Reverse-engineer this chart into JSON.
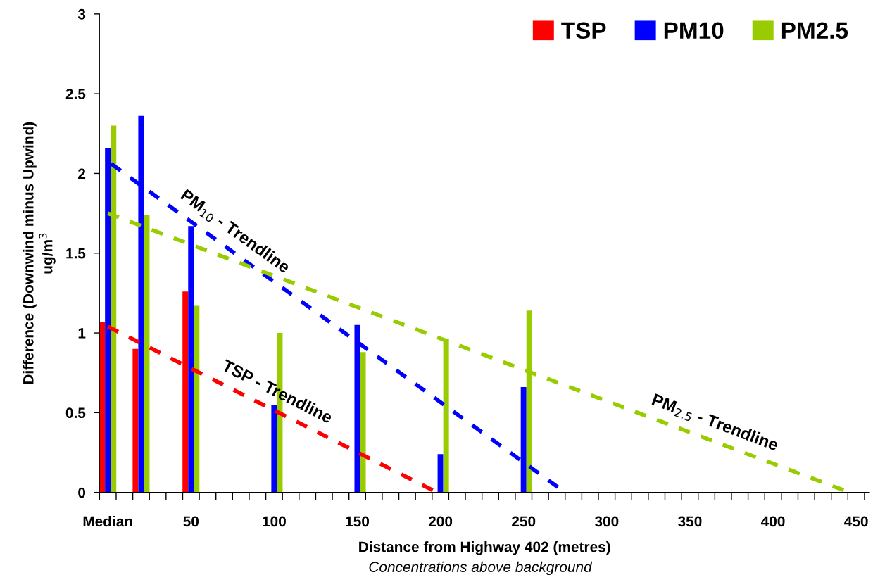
{
  "chart_data": {
    "type": "bar",
    "xlabel": "Distance from Highway 402 (metres)",
    "ylabel": "Difference (Downwind minus Upwind)\nug/m$^{3}$",
    "x": [
      0,
      20,
      50,
      100,
      150,
      200,
      250
    ],
    "series": [
      {
        "name": "TSP",
        "color": "#ff0000",
        "values": [
          1.07,
          0.9,
          1.26,
          null,
          null,
          null,
          null
        ]
      },
      {
        "name": "PM10",
        "color": "#0000ff",
        "values": [
          2.16,
          2.36,
          1.67,
          0.55,
          1.05,
          0.24,
          0.66
        ]
      },
      {
        "name": "PM2.5",
        "color": "#99cc00",
        "values": [
          2.3,
          1.74,
          1.17,
          1.0,
          0.88,
          0.96,
          1.14
        ]
      },
      {
        "type": "line",
        "color": "#ff0000",
        "line_style": "dashed",
        "x": [
          0,
          198
        ],
        "values": [
          1.04,
          0
        ]
      },
      {
        "type": "line",
        "color": "#0000ff",
        "line_style": "dashed",
        "x": [
          2,
          275
        ],
        "values": [
          2.06,
          0
        ]
      },
      {
        "type": "line",
        "color": "#99cc00",
        "line_style": "dashed",
        "x": [
          0,
          446
        ],
        "values": [
          1.75,
          0
        ]
      }
    ],
    "annotations": [
      "TSP - Trendline",
      "PM$_{10}$ - Trendline",
      "PM$_{2.5}$ - Trendline",
      "Concentrations above background"
    ],
    "xlim": [
      -5,
      458
    ],
    "xticks": [
      {
        "value": -5,
        "label": null
      },
      {
        "value": 0,
        "label": "Median"
      },
      {
        "value": 5,
        "label": null
      },
      {
        "value": 15,
        "label": null
      },
      {
        "value": 25,
        "label": null
      },
      {
        "value": 35,
        "label": null
      },
      {
        "value": 45,
        "label": null
      },
      50,
      {
        "value": 55,
        "label": null
      },
      {
        "value": 65,
        "label": null
      },
      {
        "value": 75,
        "label": null
      },
      {
        "value": 85,
        "label": null
      },
      {
        "value": 95,
        "label": null
      },
      100,
      {
        "value": 105,
        "label": null
      },
      {
        "value": 115,
        "label": null
      },
      {
        "value": 125,
        "label": null
      },
      {
        "value": 135,
        "label": null
      },
      {
        "value": 145,
        "label": null
      },
      150,
      {
        "value": 155,
        "label": null
      },
      {
        "value": 165,
        "label": null
      },
      {
        "value": 175,
        "label": null
      },
      {
        "value": 185,
        "label": null
      },
      {
        "value": 195,
        "label": null
      },
      200,
      {
        "value": 205,
        "label": null
      },
      {
        "value": 215,
        "label": null
      },
      {
        "value": 225,
        "label": null
      },
      {
        "value": 235,
        "label": null
      },
      {
        "value": 245,
        "label": null
      },
      250,
      {
        "value": 255,
        "label": null
      },
      {
        "value": 265,
        "label": null
      },
      {
        "value": 275,
        "label": null
      },
      {
        "value": 285,
        "label": null
      },
      {
        "value": 295,
        "label": null
      },
      300,
      {
        "value": 305,
        "label": null
      },
      {
        "value": 315,
        "label": null
      },
      {
        "value": 325,
        "label": null
      },
      {
        "value": 335,
        "label": null
      },
      {
        "value": 345,
        "label": null
      },
      350,
      {
        "value": 355,
        "label": null
      },
      {
        "value": 365,
        "label": null
      },
      {
        "value": 375,
        "label": null
      },
      {
        "value": 385,
        "label": null
      },
      {
        "value": 395,
        "label": null
      },
      400,
      {
        "value": 405,
        "label": null
      },
      {
        "value": 415,
        "label": null
      },
      {
        "value": 425,
        "label": null
      },
      {
        "value": 435,
        "label": null
      },
      {
        "value": 445,
        "label": null
      },
      450,
      {
        "value": 455,
        "label": null
      }
    ],
    "ylim": [
      0,
      3
    ],
    "yticks": [
      0,
      0.5,
      1,
      1.5,
      2,
      2.5,
      3
    ],
    "legend": "top right"
  }
}
